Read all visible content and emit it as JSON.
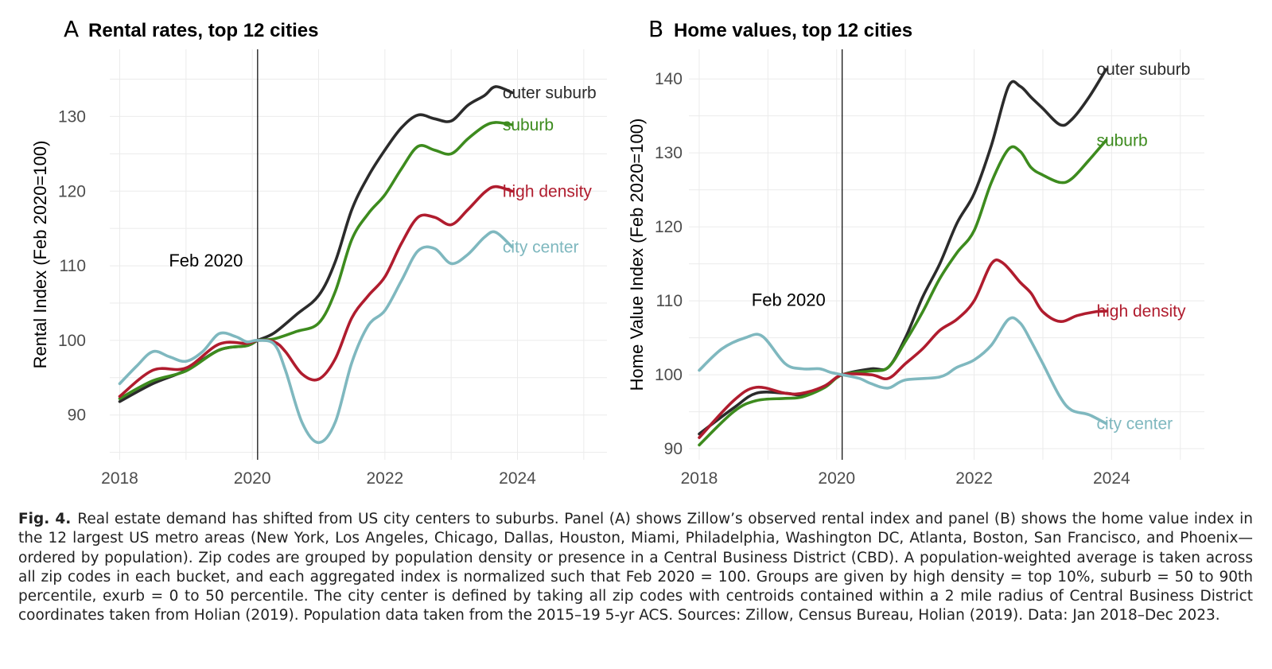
{
  "chart_data": [
    {
      "type": "line",
      "panel_letter": "A",
      "title": "Rental rates, top 12 cities",
      "ylabel": "Rental Index (Feb 2020=100)",
      "xlabel": "",
      "xlim": [
        2017.85,
        2025.35
      ],
      "ylim": [
        84,
        139
      ],
      "x_ticks": [
        2018,
        2020,
        2022,
        2024
      ],
      "y_ticks": [
        90,
        100,
        110,
        120,
        130
      ],
      "grid": true,
      "vline": {
        "x": 2020.08,
        "label": "Feb 2020"
      },
      "annotation_pos": {
        "x": 2019.3,
        "y": 109.9
      },
      "series": [
        {
          "name": "outer suburb",
          "color": "#2b2b2b",
          "points": [
            [
              2018.0,
              91.8
            ],
            [
              2018.5,
              94.2
            ],
            [
              2019.0,
              96.0
            ],
            [
              2019.5,
              98.7
            ],
            [
              2019.92,
              99.3
            ],
            [
              2020.08,
              100
            ],
            [
              2020.33,
              101.0
            ],
            [
              2020.67,
              103.5
            ],
            [
              2021.0,
              106.0
            ],
            [
              2021.25,
              110.5
            ],
            [
              2021.5,
              117.5
            ],
            [
              2021.75,
              122.0
            ],
            [
              2022.0,
              125.5
            ],
            [
              2022.25,
              128.5
            ],
            [
              2022.5,
              130.2
            ],
            [
              2022.75,
              129.7
            ],
            [
              2023.0,
              129.4
            ],
            [
              2023.25,
              131.5
            ],
            [
              2023.5,
              132.8
            ],
            [
              2023.67,
              134.0
            ],
            [
              2023.92,
              133.2
            ]
          ]
        },
        {
          "name": "suburb",
          "color": "#3d8b1e",
          "points": [
            [
              2018.0,
              92.2
            ],
            [
              2018.5,
              94.6
            ],
            [
              2019.0,
              95.9
            ],
            [
              2019.5,
              98.7
            ],
            [
              2019.92,
              99.3
            ],
            [
              2020.08,
              100
            ],
            [
              2020.33,
              100.2
            ],
            [
              2020.67,
              101.2
            ],
            [
              2021.0,
              102.3
            ],
            [
              2021.25,
              106.5
            ],
            [
              2021.5,
              113.5
            ],
            [
              2021.75,
              117.0
            ],
            [
              2022.0,
              119.5
            ],
            [
              2022.25,
              123.0
            ],
            [
              2022.5,
              126.0
            ],
            [
              2022.75,
              125.5
            ],
            [
              2023.0,
              125.0
            ],
            [
              2023.25,
              127.0
            ],
            [
              2023.5,
              128.7
            ],
            [
              2023.67,
              129.2
            ],
            [
              2023.92,
              128.9
            ]
          ]
        },
        {
          "name": "high density",
          "color": "#b01c2e",
          "points": [
            [
              2018.0,
              92.5
            ],
            [
              2018.5,
              96.0
            ],
            [
              2019.0,
              96.3
            ],
            [
              2019.5,
              99.5
            ],
            [
              2019.92,
              99.6
            ],
            [
              2020.08,
              100
            ],
            [
              2020.33,
              99.8
            ],
            [
              2020.5,
              98.5
            ],
            [
              2020.75,
              95.5
            ],
            [
              2021.0,
              94.8
            ],
            [
              2021.25,
              97.5
            ],
            [
              2021.5,
              103.0
            ],
            [
              2021.75,
              106.0
            ],
            [
              2022.0,
              108.5
            ],
            [
              2022.25,
              113.0
            ],
            [
              2022.5,
              116.5
            ],
            [
              2022.75,
              116.5
            ],
            [
              2023.0,
              115.5
            ],
            [
              2023.25,
              117.5
            ],
            [
              2023.5,
              119.8
            ],
            [
              2023.67,
              120.6
            ],
            [
              2023.92,
              120.0
            ]
          ]
        },
        {
          "name": "city center",
          "color": "#7fb8bf",
          "points": [
            [
              2018.0,
              94.2
            ],
            [
              2018.25,
              96.5
            ],
            [
              2018.5,
              98.5
            ],
            [
              2018.75,
              97.8
            ],
            [
              2019.0,
              97.2
            ],
            [
              2019.25,
              98.5
            ],
            [
              2019.5,
              100.9
            ],
            [
              2019.75,
              100.5
            ],
            [
              2019.92,
              99.8
            ],
            [
              2020.08,
              100
            ],
            [
              2020.33,
              99.5
            ],
            [
              2020.5,
              96.0
            ],
            [
              2020.75,
              89.0
            ],
            [
              2021.0,
              86.3
            ],
            [
              2021.25,
              89.0
            ],
            [
              2021.5,
              97.0
            ],
            [
              2021.75,
              102.0
            ],
            [
              2022.0,
              104.0
            ],
            [
              2022.25,
              108.0
            ],
            [
              2022.5,
              112.0
            ],
            [
              2022.75,
              112.3
            ],
            [
              2023.0,
              110.3
            ],
            [
              2023.25,
              111.5
            ],
            [
              2023.5,
              113.8
            ],
            [
              2023.67,
              114.5
            ],
            [
              2023.92,
              112.5
            ]
          ]
        }
      ]
    },
    {
      "type": "line",
      "panel_letter": "B",
      "title": "Home values, top 12 cities",
      "ylabel": "Home Value Index (Feb 2020=100)",
      "xlabel": "",
      "xlim": [
        2017.85,
        2025.35
      ],
      "ylim": [
        88.5,
        144
      ],
      "x_ticks": [
        2018,
        2020,
        2022,
        2024
      ],
      "y_ticks": [
        90,
        100,
        110,
        120,
        130,
        140
      ],
      "grid": true,
      "vline": {
        "x": 2020.08,
        "label": "Feb 2020"
      },
      "annotation_pos": {
        "x": 2019.3,
        "y": 109.3
      },
      "series": [
        {
          "name": "outer suburb",
          "color": "#2b2b2b",
          "points": [
            [
              2018.0,
              92.0
            ],
            [
              2018.5,
              95.5
            ],
            [
              2018.83,
              97.5
            ],
            [
              2019.25,
              97.5
            ],
            [
              2019.5,
              97.3
            ],
            [
              2019.83,
              98.5
            ],
            [
              2020.08,
              100
            ],
            [
              2020.5,
              100.8
            ],
            [
              2020.75,
              101.0
            ],
            [
              2021.0,
              105.0
            ],
            [
              2021.25,
              110.5
            ],
            [
              2021.5,
              115.0
            ],
            [
              2021.75,
              120.5
            ],
            [
              2022.0,
              124.5
            ],
            [
              2022.25,
              131.0
            ],
            [
              2022.5,
              139.0
            ],
            [
              2022.67,
              139.0
            ],
            [
              2022.83,
              137.5
            ],
            [
              2023.0,
              136.0
            ],
            [
              2023.25,
              133.8
            ],
            [
              2023.42,
              134.5
            ],
            [
              2023.67,
              137.5
            ],
            [
              2023.92,
              141.3
            ]
          ]
        },
        {
          "name": "suburb",
          "color": "#3d8b1e",
          "points": [
            [
              2018.0,
              90.5
            ],
            [
              2018.5,
              95.0
            ],
            [
              2018.83,
              96.5
            ],
            [
              2019.25,
              96.8
            ],
            [
              2019.5,
              97.0
            ],
            [
              2019.83,
              98.3
            ],
            [
              2020.08,
              100
            ],
            [
              2020.5,
              100.5
            ],
            [
              2020.75,
              101.0
            ],
            [
              2021.0,
              104.5
            ],
            [
              2021.25,
              108.5
            ],
            [
              2021.5,
              113.0
            ],
            [
              2021.75,
              116.5
            ],
            [
              2022.0,
              119.5
            ],
            [
              2022.25,
              126.0
            ],
            [
              2022.5,
              130.5
            ],
            [
              2022.67,
              130.2
            ],
            [
              2022.83,
              128.0
            ],
            [
              2023.0,
              127.0
            ],
            [
              2023.25,
              126.0
            ],
            [
              2023.42,
              126.5
            ],
            [
              2023.67,
              129.0
            ],
            [
              2023.92,
              131.7
            ]
          ]
        },
        {
          "name": "high density",
          "color": "#b01c2e",
          "points": [
            [
              2018.0,
              91.5
            ],
            [
              2018.5,
              96.5
            ],
            [
              2018.83,
              98.3
            ],
            [
              2019.25,
              97.5
            ],
            [
              2019.5,
              97.5
            ],
            [
              2019.83,
              98.5
            ],
            [
              2020.08,
              100
            ],
            [
              2020.5,
              100.0
            ],
            [
              2020.75,
              99.5
            ],
            [
              2021.0,
              101.5
            ],
            [
              2021.25,
              103.5
            ],
            [
              2021.5,
              106.0
            ],
            [
              2021.75,
              107.5
            ],
            [
              2022.0,
              110.0
            ],
            [
              2022.25,
              115.0
            ],
            [
              2022.42,
              115.1
            ],
            [
              2022.67,
              112.5
            ],
            [
              2022.83,
              111.0
            ],
            [
              2023.0,
              108.5
            ],
            [
              2023.25,
              107.2
            ],
            [
              2023.5,
              108.0
            ],
            [
              2023.75,
              108.5
            ],
            [
              2023.92,
              108.6
            ]
          ]
        },
        {
          "name": "city center",
          "color": "#7fb8bf",
          "points": [
            [
              2018.0,
              100.6
            ],
            [
              2018.33,
              103.5
            ],
            [
              2018.67,
              105.0
            ],
            [
              2018.92,
              105.2
            ],
            [
              2019.25,
              101.5
            ],
            [
              2019.5,
              100.8
            ],
            [
              2019.75,
              100.8
            ],
            [
              2019.92,
              100.3
            ],
            [
              2020.08,
              100
            ],
            [
              2020.33,
              99.5
            ],
            [
              2020.5,
              98.8
            ],
            [
              2020.75,
              98.2
            ],
            [
              2021.0,
              99.3
            ],
            [
              2021.5,
              99.7
            ],
            [
              2021.75,
              101.0
            ],
            [
              2022.0,
              102.0
            ],
            [
              2022.25,
              104.0
            ],
            [
              2022.5,
              107.5
            ],
            [
              2022.67,
              107.0
            ],
            [
              2022.83,
              104.5
            ],
            [
              2023.0,
              101.5
            ],
            [
              2023.25,
              97.0
            ],
            [
              2023.42,
              95.2
            ],
            [
              2023.67,
              94.6
            ],
            [
              2023.92,
              93.4
            ]
          ]
        }
      ]
    }
  ],
  "caption": {
    "fig_label": "Fig. 4.",
    "text": "Real estate demand has shifted from US city centers to suburbs. Panel (A) shows Zillow’s observed rental index and panel (B) shows the home value index in the 12 largest US metro areas (New York, Los Angeles, Chicago, Dallas, Houston, Miami, Philadelphia, Washington DC, Atlanta, Boston, San Francisco, and Phoenix—ordered by population). Zip codes are grouped by population density or presence in a Central Business District (CBD). A population-weighted average is taken across all zip codes in each bucket, and each aggregated index is normalized such that Feb 2020 = 100. Groups are given by high density = top 10%, suburb = 50 to 90th percentile, exurb = 0 to 50 percentile. The city center is defined by taking all zip codes with centroids contained within a 2 mile radius of Central Business District coordinates taken from Holian (2019). Population data taken from the 2015–19 5-yr ACS. Sources: Zillow, Census Bureau, Holian (2019). Data: Jan 2018–Dec 2023."
  }
}
